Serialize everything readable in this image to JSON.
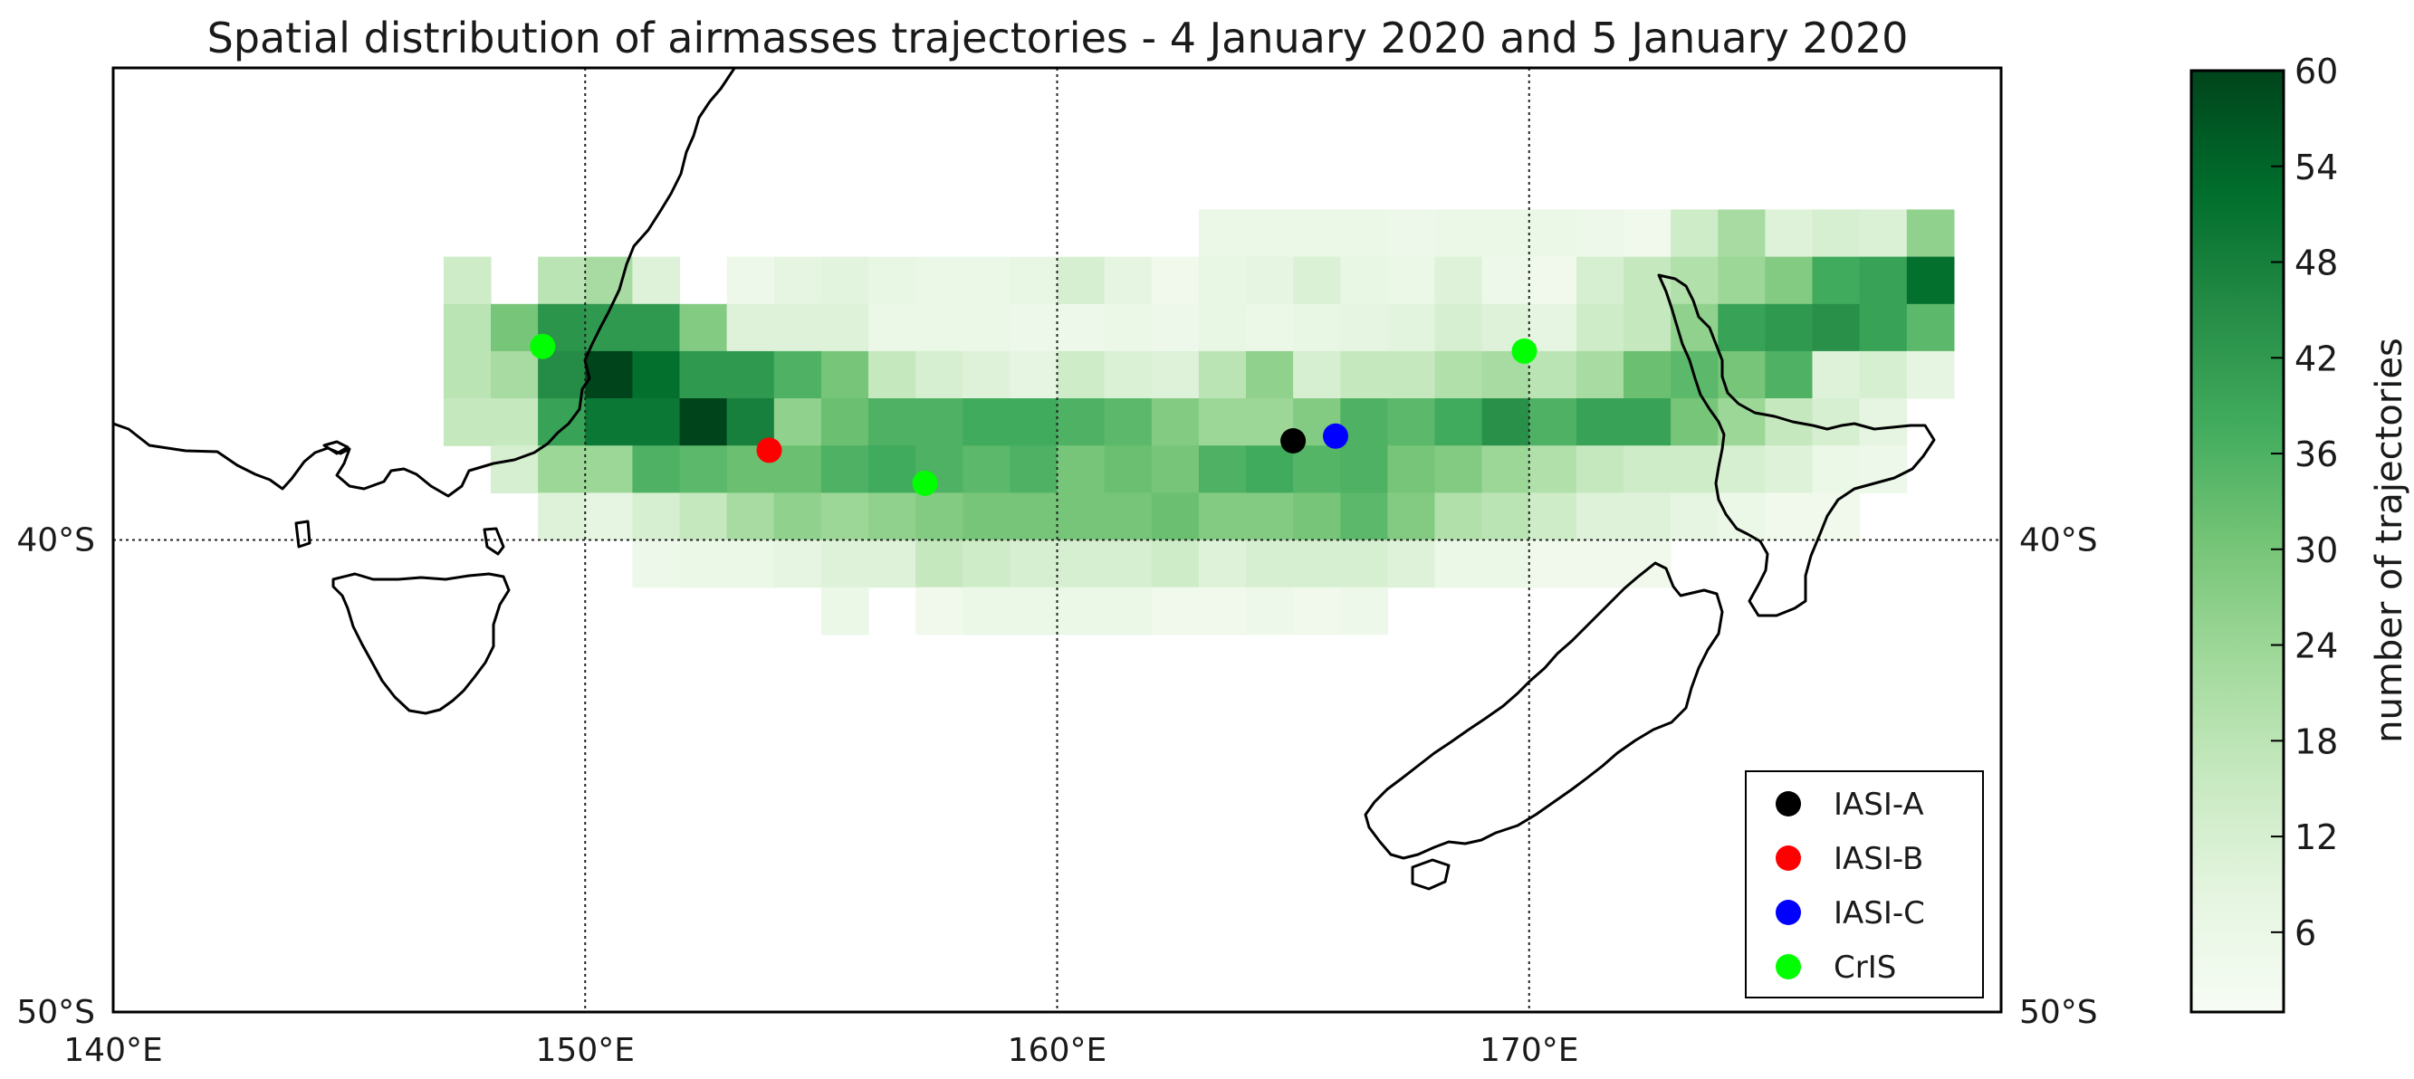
{
  "chart_data": {
    "type": "heatmap",
    "title": "Spatial distribution of airmasses trajectories -  4 January 2020 and 5 January 2020",
    "map_extent": {
      "lon": [
        140,
        180
      ],
      "lat": [
        -50,
        -30
      ]
    },
    "cell_size_deg": 1,
    "grid": true,
    "x_ticks": [
      {
        "value": 140,
        "label": "140°E"
      },
      {
        "value": 150,
        "label": "150°E"
      },
      {
        "value": 160,
        "label": "160°E"
      },
      {
        "value": 170,
        "label": "170°E"
      }
    ],
    "y_ticks": [
      {
        "value": -40,
        "label": "40°S"
      },
      {
        "value": -50,
        "label": "50°S"
      }
    ],
    "colorbar": {
      "label": "number of trajectories",
      "range": [
        1,
        60
      ],
      "ticks": [
        6,
        12,
        18,
        24,
        30,
        36,
        42,
        48,
        54,
        60
      ],
      "colors": [
        "#f7fcf5",
        "#e5f5e0",
        "#c7e9c0",
        "#a1d99b",
        "#74c476",
        "#41ab5d",
        "#238b45",
        "#006d2c",
        "#00441b"
      ]
    },
    "lat_row_tops": [
      -33,
      -34,
      -35,
      -36,
      -37,
      -38,
      -39,
      -40,
      -41,
      -42
    ],
    "lon_start": 147,
    "cells": [
      [
        0,
        0,
        0,
        0,
        0,
        0,
        0,
        0,
        0,
        0,
        0,
        0,
        0,
        0,
        0,
        0,
        6,
        6,
        6,
        6,
        5,
        6,
        6,
        6,
        5,
        4,
        14,
        22,
        10,
        12,
        11,
        26
      ],
      [
        14,
        0,
        18,
        22,
        10,
        0,
        5,
        8,
        9,
        7,
        6,
        6,
        7,
        12,
        8,
        4,
        7,
        8,
        11,
        7,
        6,
        10,
        5,
        4,
        12,
        16,
        20,
        24,
        28,
        38,
        40,
        52
      ],
      [
        18,
        30,
        43,
        42,
        42,
        28,
        10,
        10,
        10,
        6,
        6,
        6,
        5,
        5,
        6,
        5,
        7,
        6,
        7,
        8,
        9,
        12,
        10,
        8,
        14,
        16,
        26,
        40,
        42,
        44,
        40,
        34
      ],
      [
        18,
        22,
        45,
        60,
        52,
        42,
        42,
        36,
        30,
        16,
        12,
        10,
        8,
        14,
        11,
        10,
        18,
        26,
        12,
        16,
        16,
        20,
        22,
        18,
        22,
        32,
        34,
        30,
        36,
        10,
        12,
        8
      ],
      [
        16,
        16,
        40,
        50,
        50,
        60,
        48,
        26,
        32,
        36,
        36,
        38,
        38,
        36,
        34,
        28,
        24,
        24,
        28,
        36,
        34,
        38,
        44,
        36,
        40,
        40,
        30,
        24,
        16,
        12,
        8,
        0
      ],
      [
        0,
        12,
        24,
        24,
        36,
        34,
        32,
        32,
        36,
        38,
        36,
        34,
        36,
        30,
        32,
        30,
        36,
        38,
        35,
        36,
        30,
        28,
        24,
        20,
        16,
        14,
        14,
        12,
        10,
        6,
        5,
        0
      ],
      [
        0,
        0,
        10,
        8,
        12,
        16,
        22,
        26,
        24,
        26,
        28,
        30,
        30,
        30,
        30,
        32,
        28,
        28,
        30,
        34,
        28,
        20,
        18,
        14,
        10,
        10,
        8,
        6,
        4,
        4,
        0,
        0
      ],
      [
        0,
        0,
        0,
        0,
        5,
        6,
        6,
        8,
        10,
        10,
        16,
        14,
        12,
        12,
        12,
        14,
        10,
        12,
        12,
        12,
        10,
        6,
        6,
        4,
        4,
        4,
        0,
        0,
        0,
        0,
        0,
        0
      ],
      [
        0,
        0,
        0,
        0,
        0,
        0,
        0,
        0,
        6,
        0,
        4,
        6,
        6,
        6,
        6,
        4,
        4,
        5,
        4,
        5,
        0,
        0,
        0,
        0,
        0,
        0,
        0,
        0,
        0,
        0,
        0,
        0
      ],
      [
        0,
        0,
        0,
        0,
        0,
        0,
        0,
        0,
        0,
        0,
        0,
        0,
        0,
        0,
        0,
        0,
        0,
        0,
        0,
        0,
        0,
        0,
        0,
        0,
        0,
        0,
        0,
        0,
        0,
        0,
        0,
        0
      ]
    ],
    "series": [
      {
        "name": "IASI-A",
        "color": "#000000",
        "points": [
          {
            "lon": 165.0,
            "lat": -37.9
          }
        ]
      },
      {
        "name": "IASI-B",
        "color": "#ff0000",
        "points": [
          {
            "lon": 153.9,
            "lat": -38.1
          }
        ]
      },
      {
        "name": "IASI-C",
        "color": "#0000ff",
        "points": [
          {
            "lon": 165.9,
            "lat": -37.8
          }
        ]
      },
      {
        "name": "CrIS",
        "color": "#00ff00",
        "points": [
          {
            "lon": 149.1,
            "lat": -35.9
          },
          {
            "lon": 157.2,
            "lat": -38.8
          },
          {
            "lon": 169.9,
            "lat": -36.0
          }
        ]
      }
    ],
    "legend_position": "bottom-right"
  }
}
